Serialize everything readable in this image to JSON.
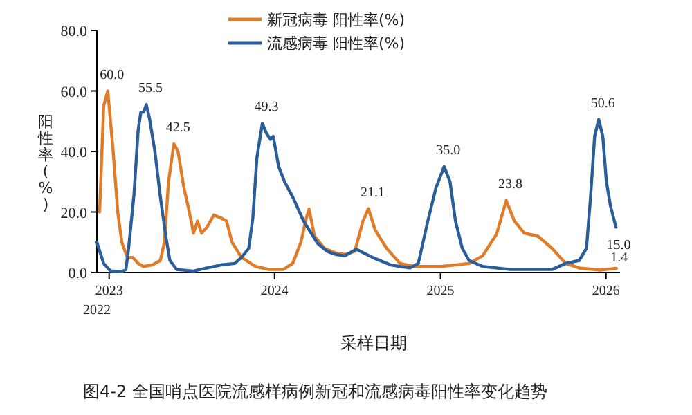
{
  "chart_data": {
    "type": "line",
    "xlabel": "采样日期",
    "ylabel": "阳性率(%)",
    "legend": "top",
    "annotations": [
      "图4-2 全国哨点医院流感样病例新冠和流感病毒阳性率变化趋势",
      "2022"
    ],
    "xlim": [
      "2022-12-05",
      "2026-02-01"
    ],
    "xticks": [
      {
        "value": "2023-01-01",
        "label": "2023"
      },
      {
        "value": "2024-01-01",
        "label": "2024"
      },
      {
        "value": "2025-01-01",
        "label": "2025"
      },
      {
        "value": "2026-01-01",
        "label": "2026"
      }
    ],
    "ylim": [
      0,
      80
    ],
    "yticks": [
      {
        "value": 0,
        "label": "0.0"
      },
      {
        "value": 20,
        "label": "20.0"
      },
      {
        "value": 40,
        "label": "40.0"
      },
      {
        "value": 60,
        "label": "60.0"
      },
      {
        "value": 80,
        "label": "80.0"
      }
    ],
    "series": [
      {
        "name": "新冠病毒 阳性率(%)",
        "color": "#e07b28",
        "x": [
          "2022-12-11",
          "2022-12-20",
          "2022-12-29",
          "2023-01-10",
          "2023-01-20",
          "2023-01-29",
          "2023-02-10",
          "2023-02-22",
          "2023-03-06",
          "2023-03-18",
          "2023-04-06",
          "2023-04-24",
          "2023-05-03",
          "2023-05-12",
          "2023-05-24",
          "2023-06-02",
          "2023-06-15",
          "2023-06-27",
          "2023-07-06",
          "2023-07-15",
          "2023-07-24",
          "2023-08-05",
          "2023-08-20",
          "2023-09-05",
          "2023-09-17",
          "2023-09-29",
          "2023-10-20",
          "2023-11-20",
          "2023-12-20",
          "2024-01-20",
          "2024-02-10",
          "2024-02-28",
          "2024-03-11",
          "2024-03-17",
          "2024-03-29",
          "2024-04-20",
          "2024-05-14",
          "2024-06-04",
          "2024-06-26",
          "2024-07-14",
          "2024-07-26",
          "2024-08-10",
          "2024-09-04",
          "2024-10-04",
          "2024-11-03",
          "2025-01-03",
          "2025-03-05",
          "2025-04-04",
          "2025-05-05",
          "2025-05-26",
          "2025-06-13",
          "2025-07-05",
          "2025-08-04",
          "2025-09-04",
          "2025-10-04",
          "2025-11-03",
          "2025-12-19",
          "2026-01-24"
        ],
        "values": [
          20,
          55,
          60.0,
          40,
          20,
          10,
          5,
          5,
          3,
          2,
          2.5,
          4,
          10,
          30,
          42.5,
          40,
          28,
          20,
          13,
          17,
          13,
          15,
          19,
          18,
          17,
          10,
          5,
          2,
          1,
          1,
          3,
          10,
          18,
          21,
          12,
          8,
          6.5,
          6,
          7,
          17,
          21.1,
          14,
          8,
          3,
          2,
          2,
          3,
          5.5,
          12.8,
          23.8,
          17,
          13,
          12,
          8,
          3,
          1.5,
          0.8,
          1.4
        ],
        "value_labels": [
          null,
          null,
          "60.0",
          null,
          null,
          null,
          null,
          null,
          null,
          null,
          null,
          null,
          null,
          null,
          "42.5",
          null,
          null,
          null,
          null,
          null,
          null,
          null,
          null,
          null,
          null,
          null,
          null,
          null,
          null,
          null,
          null,
          null,
          null,
          null,
          null,
          null,
          null,
          null,
          null,
          null,
          "21.1",
          null,
          null,
          null,
          null,
          null,
          null,
          null,
          null,
          "23.8",
          null,
          null,
          null,
          null,
          null,
          null,
          null,
          "1.4"
        ]
      },
      {
        "name": "流感病毒 阳性率(%)",
        "color": "#2a5d9a",
        "x": [
          "2022-12-05",
          "2022-12-20",
          "2023-01-04",
          "2023-01-29",
          "2023-02-07",
          "2023-02-13",
          "2023-02-25",
          "2023-03-06",
          "2023-03-12",
          "2023-03-18",
          "2023-03-24",
          "2023-03-31",
          "2023-04-12",
          "2023-04-24",
          "2023-05-06",
          "2023-05-15",
          "2023-05-30",
          "2023-07-06",
          "2023-08-05",
          "2023-09-05",
          "2023-10-05",
          "2023-10-20",
          "2023-11-05",
          "2023-11-14",
          "2023-11-23",
          "2023-12-05",
          "2023-12-14",
          "2023-12-23",
          "2023-12-29",
          "2024-01-10",
          "2024-01-23",
          "2024-02-10",
          "2024-03-05",
          "2024-04-05",
          "2024-04-26",
          "2024-05-14",
          "2024-06-04",
          "2024-06-29",
          "2024-08-04",
          "2024-09-13",
          "2024-10-25",
          "2024-11-13",
          "2024-12-04",
          "2024-12-22",
          "2025-01-09",
          "2025-01-22",
          "2025-02-03",
          "2025-02-18",
          "2025-03-05",
          "2025-04-04",
          "2025-06-04",
          "2025-09-04",
          "2025-10-04",
          "2025-11-03",
          "2025-11-19",
          "2025-11-28",
          "2025-12-07",
          "2025-12-16",
          "2025-12-25",
          "2026-01-02",
          "2026-01-11",
          "2026-01-23"
        ],
        "values": [
          10,
          3,
          0.5,
          0.3,
          1,
          8,
          26,
          47,
          53,
          53,
          55.5,
          51,
          40,
          25,
          12,
          4,
          1,
          0.5,
          1.5,
          2.5,
          3,
          5,
          8,
          18,
          38,
          49.3,
          46,
          44,
          45,
          35,
          30,
          25,
          17,
          9.6,
          7,
          6,
          5.5,
          7.7,
          5,
          2.5,
          1.5,
          3,
          17,
          28,
          35.0,
          30,
          17,
          8,
          4,
          2,
          1,
          1,
          3,
          4,
          8,
          25,
          45,
          50.6,
          45,
          30,
          22,
          15.0
        ],
        "value_labels": [
          null,
          null,
          null,
          null,
          null,
          null,
          null,
          null,
          null,
          null,
          "55.5",
          null,
          null,
          null,
          null,
          null,
          null,
          null,
          null,
          null,
          null,
          null,
          null,
          null,
          null,
          "49.3",
          null,
          null,
          null,
          null,
          null,
          null,
          null,
          null,
          null,
          null,
          null,
          null,
          null,
          null,
          null,
          null,
          null,
          null,
          "35.0",
          null,
          null,
          null,
          null,
          null,
          null,
          null,
          null,
          null,
          null,
          null,
          null,
          "50.6",
          null,
          null,
          null,
          "15.0"
        ]
      }
    ]
  }
}
